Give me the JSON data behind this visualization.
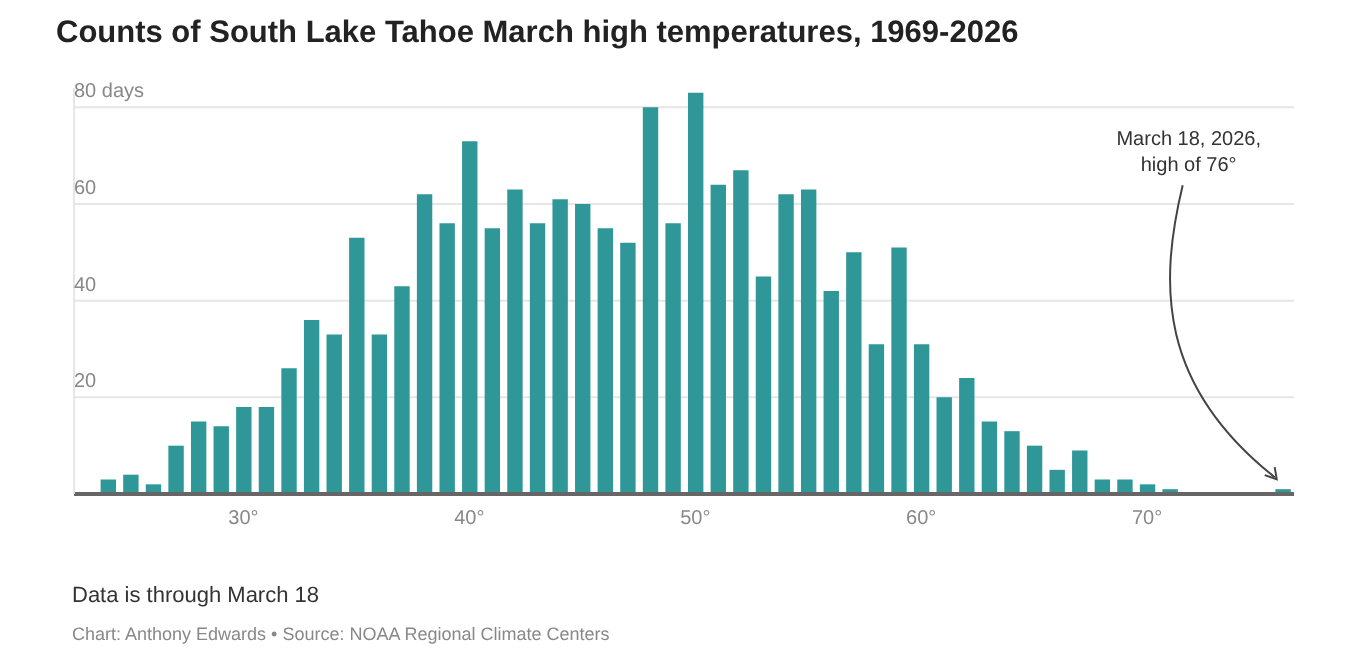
{
  "chart_data": {
    "type": "histogram",
    "title": "Counts of South Lake Tahoe March high temperatures, 1969-2026",
    "bins": [
      23.5,
      24.5,
      25.5,
      26.5,
      27.5,
      28.5,
      29.5,
      30.5,
      31.5,
      32.5,
      33.5,
      34.5,
      35.5,
      36.5,
      37.5,
      38.5,
      39.5,
      40.5,
      41.5,
      42.5,
      43.5,
      44.5,
      45.5,
      46.5,
      47.5,
      48.5,
      49.5,
      50.5,
      51.5,
      52.5,
      53.5,
      54.5,
      55.5,
      56.5,
      57.5,
      58.5,
      59.5,
      60.5,
      61.5,
      62.5,
      63.5,
      64.5,
      65.5,
      66.5,
      67.5,
      68.5,
      69.5,
      70.5,
      71.5,
      72.5,
      73.5,
      74.5,
      75.5,
      76.5
    ],
    "values": [
      3,
      4,
      2,
      10,
      15,
      14,
      18,
      18,
      26,
      36,
      33,
      53,
      33,
      43,
      62,
      56,
      73,
      55,
      63,
      56,
      61,
      60,
      55,
      52,
      80,
      56,
      83,
      64,
      67,
      45,
      62,
      63,
      42,
      50,
      31,
      51,
      31,
      20,
      24,
      15,
      13,
      10,
      5,
      9,
      3,
      3,
      2,
      1,
      0,
      0,
      0,
      0,
      1
    ],
    "color": "#2f9797",
    "xlim": [
      22.5,
      76.5
    ],
    "xticks": [
      {
        "value": 30,
        "label": "30°"
      },
      {
        "value": 40,
        "label": "40°"
      },
      {
        "value": 50,
        "label": "50°"
      },
      {
        "value": 60,
        "label": "60°"
      },
      {
        "value": 70,
        "label": "70°"
      }
    ],
    "ylim": [
      0,
      84
    ],
    "yticks": [
      {
        "value": 0,
        "label": null
      },
      20,
      40,
      60,
      {
        "value": 80,
        "label": "80 days"
      }
    ],
    "grid": "y",
    "annotations": [
      {
        "text": "March 18, 2026,\nhigh of 76°",
        "x": 76,
        "y": 1
      },
      "Data is through March 18",
      "Chart: Anthony Edwards • Source: NOAA Regional Climate Centers"
    ]
  }
}
